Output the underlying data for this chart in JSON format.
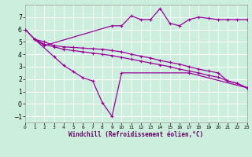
{
  "bg_color": "#cceedd",
  "grid_color": "#aaddcc",
  "line_color": "#990099",
  "xlabel": "Windchill (Refroidissement éolien,°C)",
  "xlim": [
    0,
    23
  ],
  "ylim": [
    -1.5,
    8.0
  ],
  "yticks": [
    -1,
    0,
    1,
    2,
    3,
    4,
    5,
    6,
    7
  ],
  "xticks": [
    0,
    1,
    2,
    3,
    4,
    5,
    6,
    7,
    8,
    9,
    10,
    11,
    12,
    13,
    14,
    15,
    16,
    17,
    18,
    19,
    20,
    21,
    22,
    23
  ],
  "line1_x": [
    0,
    1,
    2,
    9,
    10,
    11,
    12,
    13,
    14,
    15,
    16,
    17,
    18,
    19,
    20,
    21,
    22,
    23
  ],
  "line1_y": [
    6.0,
    5.2,
    4.7,
    6.3,
    6.3,
    7.1,
    6.8,
    6.8,
    7.7,
    6.5,
    6.3,
    6.8,
    7.0,
    6.9,
    6.8,
    6.8,
    6.8,
    6.8
  ],
  "line2_x": [
    0,
    1,
    3,
    4,
    5,
    6,
    7,
    8,
    9,
    10,
    17,
    23
  ],
  "line2_y": [
    6.0,
    5.2,
    3.8,
    3.1,
    2.6,
    2.1,
    1.85,
    0.1,
    -1.0,
    2.5,
    2.5,
    1.3
  ],
  "line3_x": [
    1,
    2,
    3,
    4,
    5,
    6,
    7,
    8,
    9,
    10,
    11,
    12,
    13,
    14,
    15,
    16,
    17,
    18,
    19,
    20,
    21,
    22,
    23
  ],
  "line3_y": [
    5.2,
    5.0,
    4.7,
    4.6,
    4.55,
    4.5,
    4.45,
    4.4,
    4.3,
    4.2,
    4.0,
    3.85,
    3.7,
    3.5,
    3.35,
    3.2,
    3.0,
    2.8,
    2.65,
    2.5,
    1.85,
    1.65,
    1.3
  ],
  "line4_x": [
    1,
    2,
    3,
    4,
    5,
    6,
    7,
    8,
    9,
    10,
    11,
    12,
    13,
    14,
    15,
    16,
    17,
    18,
    19,
    20,
    21,
    22,
    23
  ],
  "line4_y": [
    5.2,
    4.8,
    4.6,
    4.4,
    4.3,
    4.2,
    4.1,
    4.0,
    3.9,
    3.75,
    3.6,
    3.45,
    3.3,
    3.15,
    3.0,
    2.8,
    2.65,
    2.5,
    2.3,
    2.15,
    1.85,
    1.65,
    1.3
  ]
}
